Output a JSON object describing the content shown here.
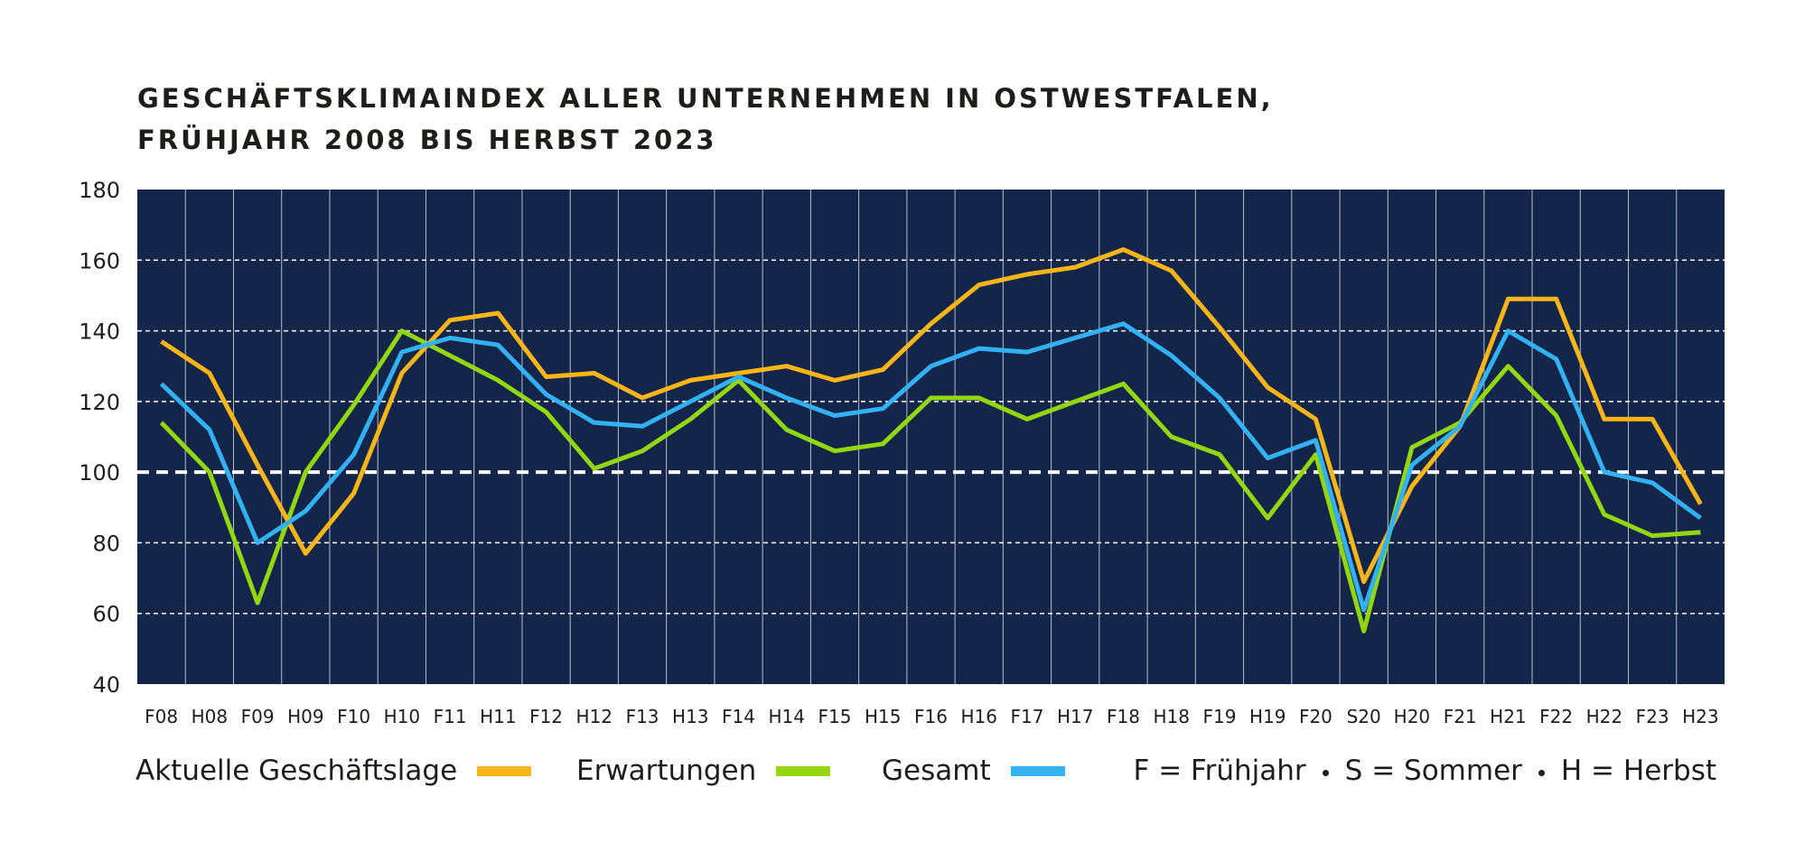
{
  "title_lines": [
    "GESCHÄFTSKLIMAINDEX ALLER UNTERNEHMEN IN OSTWESTFALEN,",
    "FRÜHJAHR 2008 BIS HERBST 2023"
  ],
  "colors": {
    "plot_background": "#13264a",
    "gridline": "#ffffff",
    "aktuelle": "#fbb514",
    "erwartungen": "#94d60c",
    "gesamt": "#33b1f5"
  },
  "legend": {
    "items": [
      {
        "label": "Aktuelle Geschäftslage",
        "color": "#fbb514"
      },
      {
        "label": "Erwartungen",
        "color": "#94d60c"
      },
      {
        "label": "Gesamt",
        "color": "#33b1f5"
      }
    ],
    "note": [
      "F = Frühjahr",
      "S = Sommer",
      "H = Herbst"
    ]
  },
  "chart_data": {
    "type": "line",
    "title": "GESCHÄFTSKLIMAINDEX ALLER UNTERNEHMEN IN OSTWESTFALEN, FRÜHJAHR 2008 BIS HERBST 2023",
    "xlabel": "",
    "ylabel": "",
    "ylim": [
      40,
      180
    ],
    "yticks": [
      40,
      60,
      80,
      100,
      120,
      140,
      160,
      180
    ],
    "reference_line": 100,
    "grid": true,
    "legend_position": "bottom",
    "categories": [
      "F08",
      "H08",
      "F09",
      "H09",
      "F10",
      "H10",
      "F11",
      "H11",
      "F12",
      "H12",
      "F13",
      "H13",
      "F14",
      "H14",
      "F15",
      "H15",
      "F16",
      "H16",
      "F17",
      "H17",
      "F18",
      "H18",
      "F19",
      "H19",
      "F20",
      "S20",
      "H20",
      "F21",
      "H21",
      "F22",
      "H22",
      "F23",
      "H23"
    ],
    "series": [
      {
        "name": "Aktuelle Geschäftslage",
        "color": "#fbb514",
        "values": [
          137,
          128,
          102,
          77,
          94,
          128,
          143,
          145,
          127,
          128,
          121,
          126,
          128,
          130,
          126,
          129,
          142,
          153,
          156,
          158,
          163,
          157,
          141,
          124,
          115,
          69,
          96,
          113,
          149,
          149,
          115,
          115,
          91
        ]
      },
      {
        "name": "Erwartungen",
        "color": "#94d60c",
        "values": [
          114,
          100,
          63,
          100,
          119,
          140,
          133,
          126,
          117,
          101,
          106,
          115,
          126,
          112,
          106,
          108,
          121,
          121,
          115,
          120,
          125,
          110,
          105,
          87,
          105,
          55,
          107,
          114,
          130,
          116,
          88,
          82,
          83
        ]
      },
      {
        "name": "Gesamt",
        "color": "#33b1f5",
        "values": [
          125,
          112,
          80,
          89,
          105,
          134,
          138,
          136,
          122,
          114,
          113,
          120,
          127,
          121,
          116,
          118,
          130,
          135,
          134,
          138,
          142,
          133,
          121,
          104,
          109,
          61,
          102,
          113,
          140,
          132,
          100,
          97,
          87
        ]
      }
    ]
  }
}
